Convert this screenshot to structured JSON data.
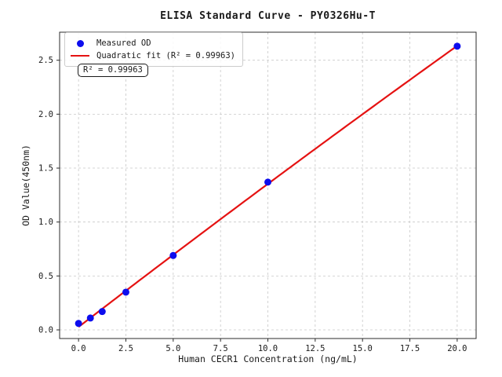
{
  "chart_data": {
    "type": "scatter",
    "title": "ELISA Standard Curve - PY0326Hu-T",
    "xlabel": "Human CECR1 Concentration (ng/mL)",
    "ylabel": "OD Value(450nm)",
    "xlim": [
      -1,
      21
    ],
    "ylim": [
      -0.08,
      2.76
    ],
    "xticks": [
      0,
      2.5,
      5,
      7.5,
      10,
      12.5,
      15,
      17.5,
      20
    ],
    "xtick_labels": [
      "0.0",
      "2.5",
      "5.0",
      "7.5",
      "10.0",
      "12.5",
      "15.0",
      "17.5",
      "20.0"
    ],
    "yticks": [
      0,
      0.5,
      1,
      1.5,
      2,
      2.5
    ],
    "ytick_labels": [
      "0.0",
      "0.5",
      "1.0",
      "1.5",
      "2.0",
      "2.5"
    ],
    "grid": true,
    "grid_color": "#c8c8c8",
    "spine_color": "#2b2b2b",
    "text_color": "#1a1a1a",
    "series": [
      {
        "name": "Measured OD",
        "type": "scatter",
        "color": "#0d0dee",
        "x": [
          0,
          0.625,
          1.25,
          2.5,
          5,
          10,
          20
        ],
        "y": [
          0.06,
          0.11,
          0.17,
          0.35,
          0.69,
          1.37,
          2.63
        ]
      },
      {
        "name": "Quadratic fit (R² = 0.99963)",
        "type": "line",
        "color": "#e51212",
        "fit": "quadratic",
        "x_range": [
          0,
          20
        ]
      }
    ],
    "legend_position": "upper left",
    "annotation": "R² = 0.99963",
    "r_squared": 0.99963
  }
}
